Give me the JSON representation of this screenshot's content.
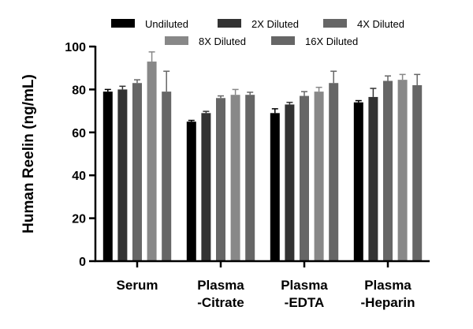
{
  "chart_data": {
    "type": "bar",
    "title": "",
    "xlabel": "",
    "ylabel": "Human Reelin (ng/mL)",
    "ylim": [
      0,
      100
    ],
    "yticks": [
      0,
      20,
      40,
      60,
      80,
      100
    ],
    "categories": [
      [
        "Serum"
      ],
      [
        "Plasma",
        "-Citrate"
      ],
      [
        "Plasma",
        "-EDTA"
      ],
      [
        "Plasma",
        "-Heparin"
      ]
    ],
    "series": [
      {
        "name": "Undiluted",
        "color": "#000000",
        "values": [
          79,
          65,
          69,
          74
        ],
        "errors": [
          1.0,
          0.6,
          2.0,
          0.8
        ]
      },
      {
        "name": "2X Diluted",
        "color": "#333333",
        "values": [
          80,
          69,
          73,
          76.5
        ],
        "errors": [
          1.5,
          0.8,
          1.0,
          4.0
        ]
      },
      {
        "name": "4X Diluted",
        "color": "#666666",
        "values": [
          83,
          76,
          77,
          84
        ],
        "errors": [
          1.5,
          1.0,
          2.0,
          2.3
        ]
      },
      {
        "name": "8X Diluted",
        "color": "#888888",
        "values": [
          93,
          77.5,
          79,
          84.5
        ],
        "errors": [
          4.5,
          2.5,
          2.0,
          2.5
        ]
      },
      {
        "name": "16X Diluted",
        "color": "#666666",
        "values": [
          79,
          77.5,
          83,
          82
        ],
        "errors": [
          9.5,
          1.2,
          5.5,
          5.0
        ]
      }
    ],
    "legend_position": "top",
    "grid": false
  }
}
